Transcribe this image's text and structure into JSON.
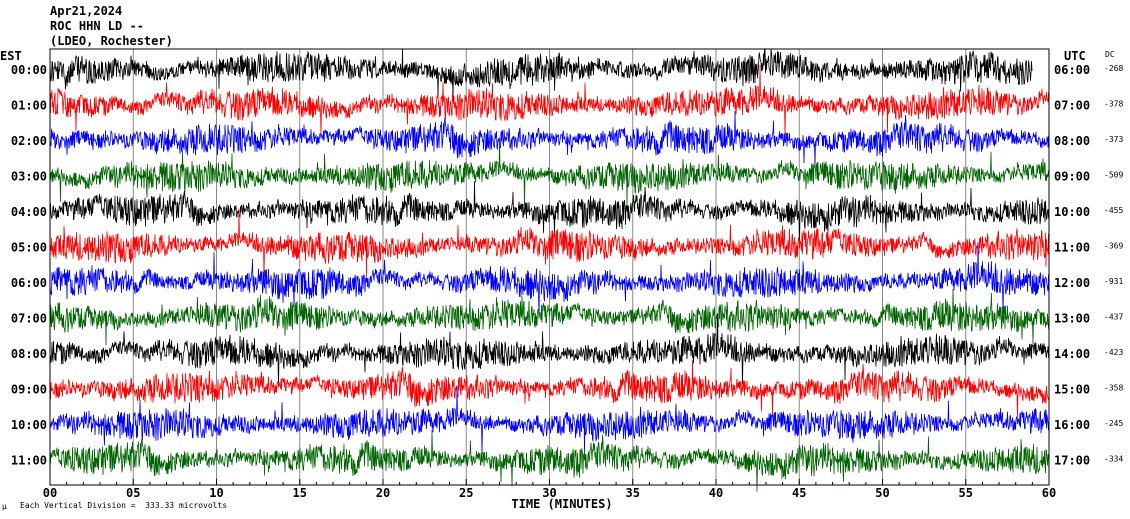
{
  "header": {
    "date": "Apr21,2024",
    "station": "ROC HHN LD --",
    "network": "(LDEO, Rochester)"
  },
  "chart_data": {
    "type": "line",
    "title": "",
    "xlabel": "TIME (MINUTES)",
    "xlim": [
      0,
      60
    ],
    "x_ticks": [
      "00",
      "05",
      "10",
      "15",
      "20",
      "25",
      "30",
      "35",
      "40",
      "45",
      "50",
      "55",
      "60"
    ],
    "left_axis_label": "EST",
    "right_axis_label": "UTC",
    "dc_label": "DC",
    "trace_colors": [
      "#000000",
      "#ff0000",
      "#0000ff",
      "#006400"
    ],
    "rows": [
      {
        "est": "00:00",
        "utc": "06:00",
        "dc": "-268"
      },
      {
        "est": "01:00",
        "utc": "07:00",
        "dc": "-378"
      },
      {
        "est": "02:00",
        "utc": "08:00",
        "dc": "-373"
      },
      {
        "est": "03:00",
        "utc": "09:00",
        "dc": "-509"
      },
      {
        "est": "04:00",
        "utc": "10:00",
        "dc": "-455"
      },
      {
        "est": "05:00",
        "utc": "11:00",
        "dc": "-369"
      },
      {
        "est": "06:00",
        "utc": "12:00",
        "dc": "-931"
      },
      {
        "est": "07:00",
        "utc": "13:00",
        "dc": "-437"
      },
      {
        "est": "08:00",
        "utc": "14:00",
        "dc": "-423"
      },
      {
        "est": "09:00",
        "utc": "15:00",
        "dc": "-358"
      },
      {
        "est": "10:00",
        "utc": "16:00",
        "dc": "-245"
      },
      {
        "est": "11:00",
        "utc": "17:00",
        "dc": "-334"
      }
    ],
    "first_row_end_minute": 59,
    "grid": "vertical lines every 5 minutes",
    "scale_note": "Each Vertical Division =  333.33 microvolts",
    "scale_icon": "mu-symbol"
  }
}
